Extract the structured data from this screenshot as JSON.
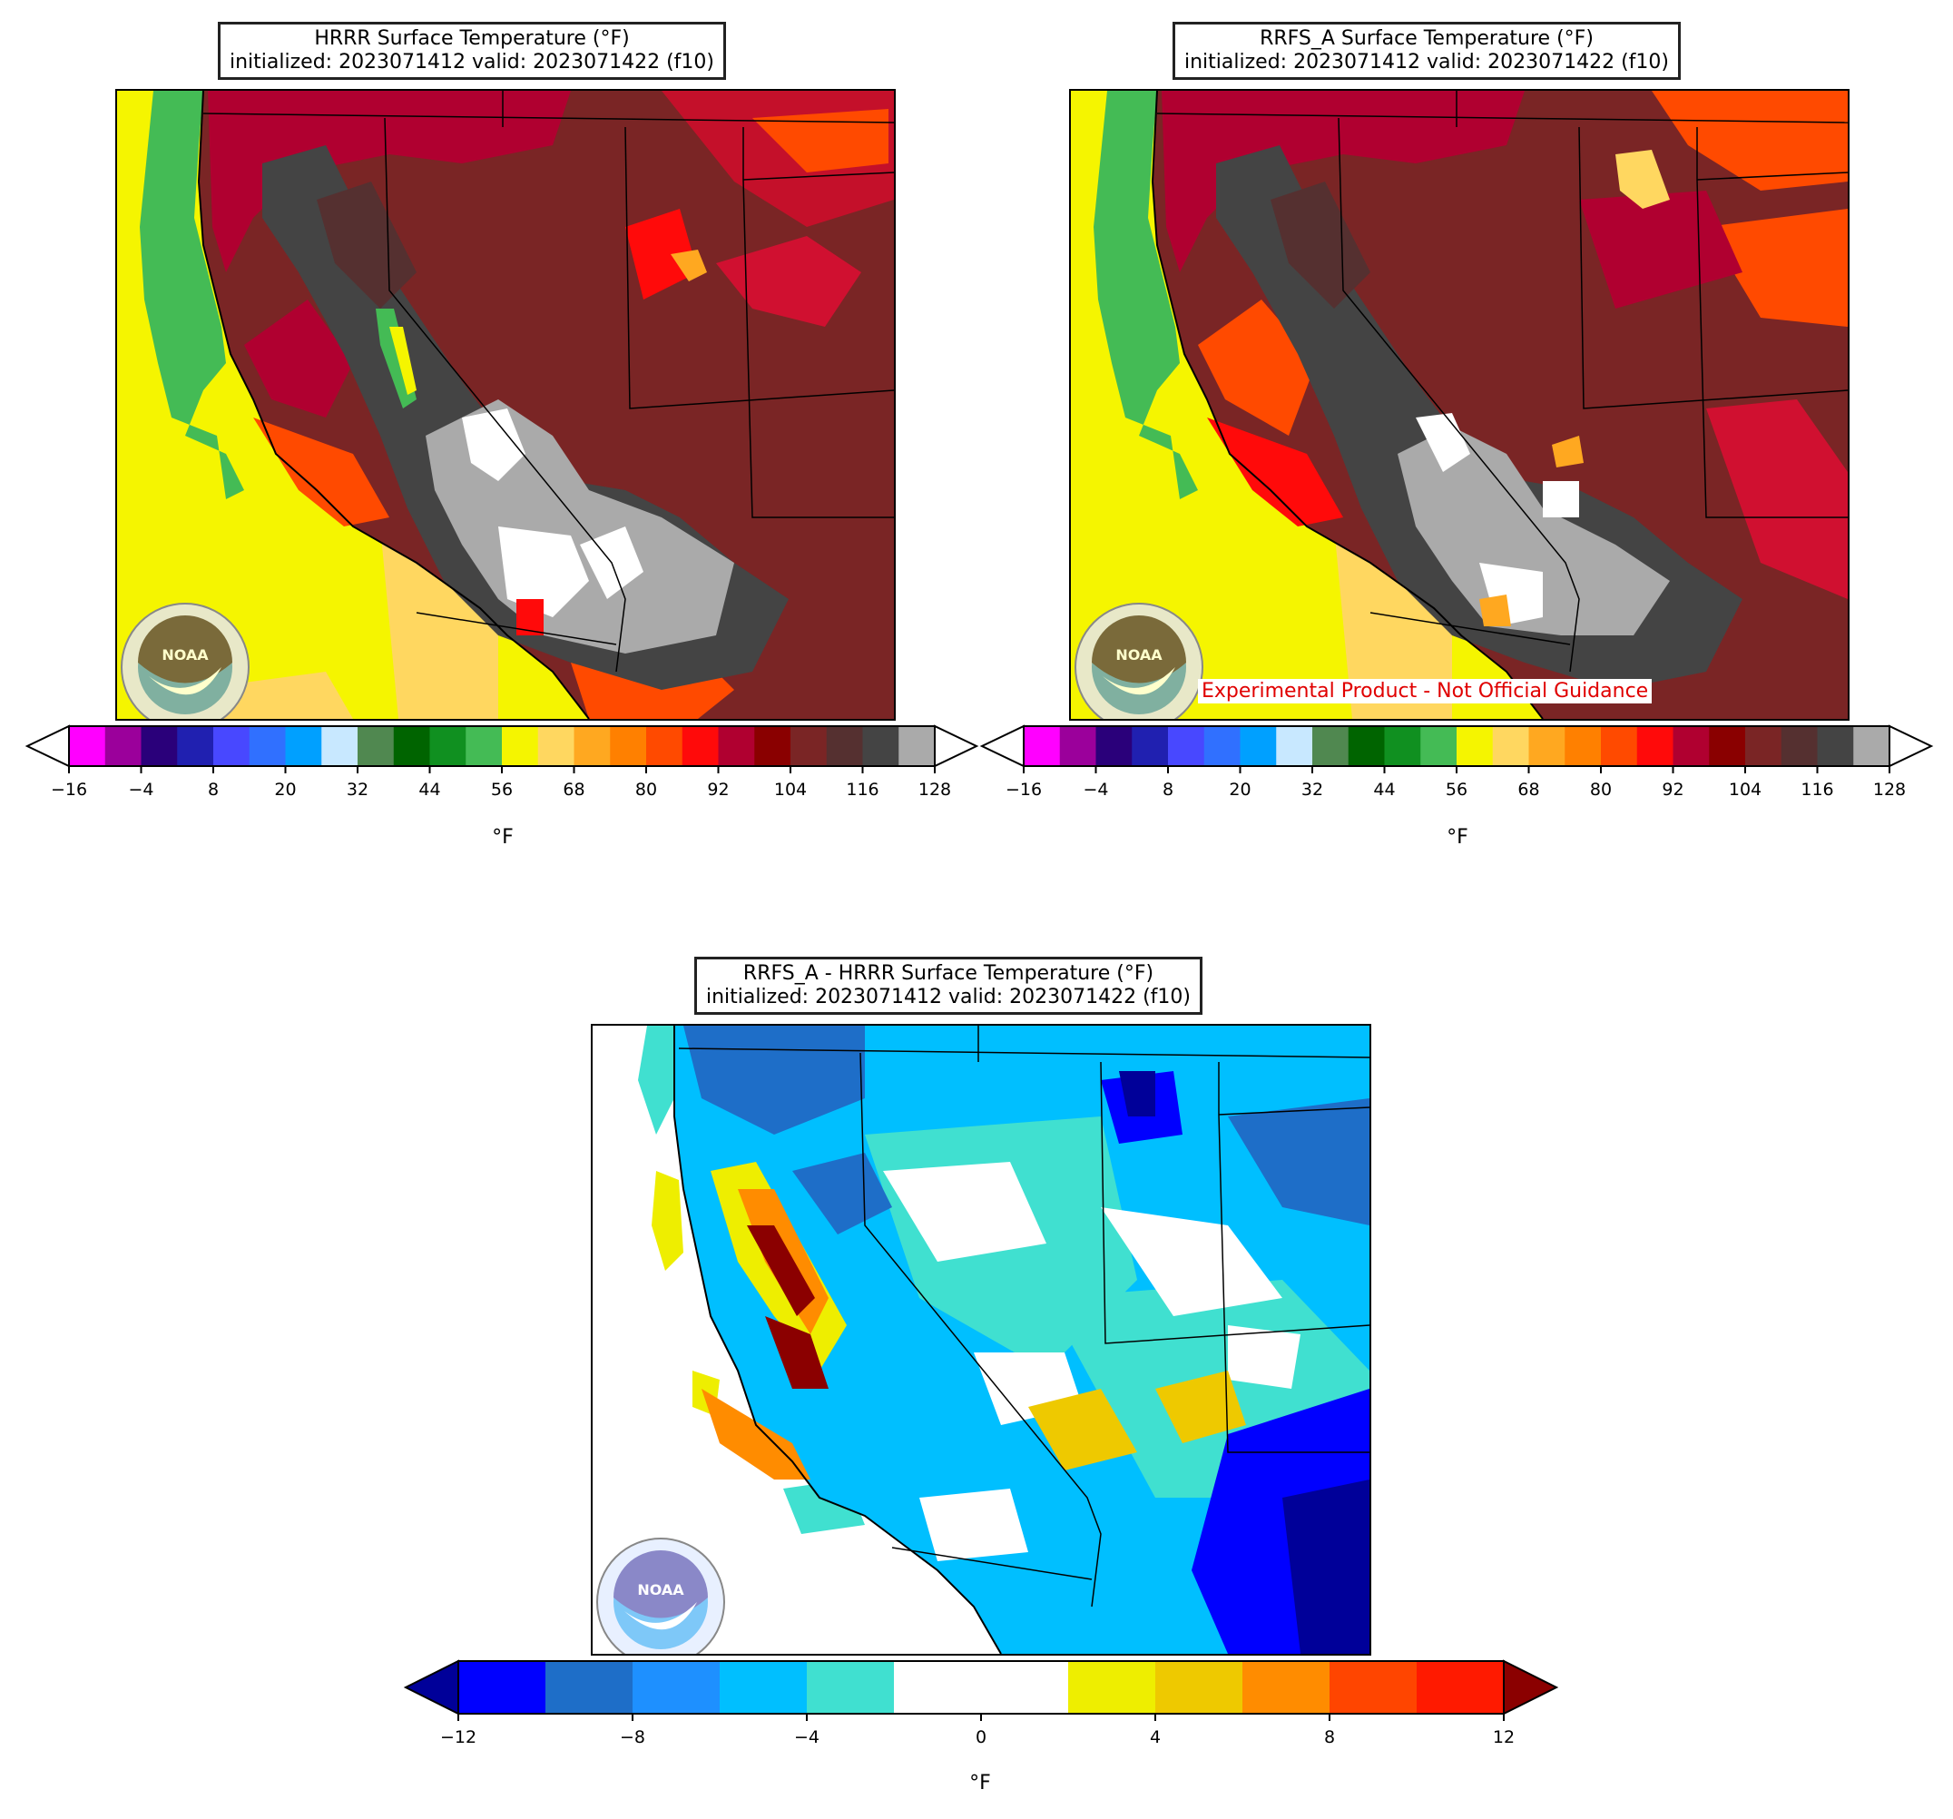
{
  "panels": {
    "hrrr": {
      "title_line1": "HRRR Surface Temperature (°F)",
      "title_line2": "initialized: 2023071412 valid: 2023071422 (f10)",
      "logo_text": "NOAA",
      "unit": "°F"
    },
    "rrfs": {
      "title_line1": "RRFS_A Surface Temperature (°F)",
      "title_line2": "initialized: 2023071412 valid: 2023071422 (f10)",
      "logo_text": "NOAA",
      "unit": "°F",
      "experimental_label": "Experimental Product - Not Official Guidance"
    },
    "diff": {
      "title_line1": "RRFS_A - HRRR Surface Temperature (°F)",
      "title_line2": "initialized: 2023071412 valid: 2023071422 (f10)",
      "logo_text": "NOAA",
      "unit": "°F"
    }
  },
  "temp_colorbar": {
    "ticks": [
      "−16",
      "−4",
      "8",
      "20",
      "32",
      "44",
      "56",
      "68",
      "80",
      "92",
      "104",
      "116",
      "128"
    ],
    "colors": [
      "#ff00ff",
      "#9b009b",
      "#2a007a",
      "#2020b0",
      "#4848ff",
      "#3070ff",
      "#00a0ff",
      "#c8e8ff",
      "#508850",
      "#006400",
      "#109020",
      "#44bb55",
      "#f5f500",
      "#ffd760",
      "#ffa820",
      "#ff8000",
      "#ff4a00",
      "#ff0a0a",
      "#b00030",
      "#8a0000",
      "#7a2525",
      "#553030",
      "#444444",
      "#aaaaaa"
    ],
    "extend_colors": [
      "#ffffff",
      "#ffffff"
    ]
  },
  "diff_colorbar": {
    "ticks": [
      "−12",
      "−8",
      "−4",
      "0",
      "4",
      "8",
      "12"
    ],
    "colors": [
      "#0000ff",
      "#1e6ec8",
      "#1e90ff",
      "#00bfff",
      "#40e0d0",
      "#ffffff",
      "#ffffff",
      "#eeee00",
      "#eec900",
      "#ff8c00",
      "#ff4500",
      "#ff1a00"
    ],
    "extend_colors": [
      "#000099",
      "#8b0000"
    ]
  },
  "colors": {
    "ocean_yellow": "#f5f500",
    "ocean_green": "#44bb55",
    "ocean_light": "#ffd760",
    "land_dark_red": "#7a2525",
    "land_red": "#d01030",
    "land_orange": "#ff5a00",
    "land_gray": "#444444",
    "land_light_gray": "#aaaaaa",
    "land_white": "#ffffff"
  }
}
